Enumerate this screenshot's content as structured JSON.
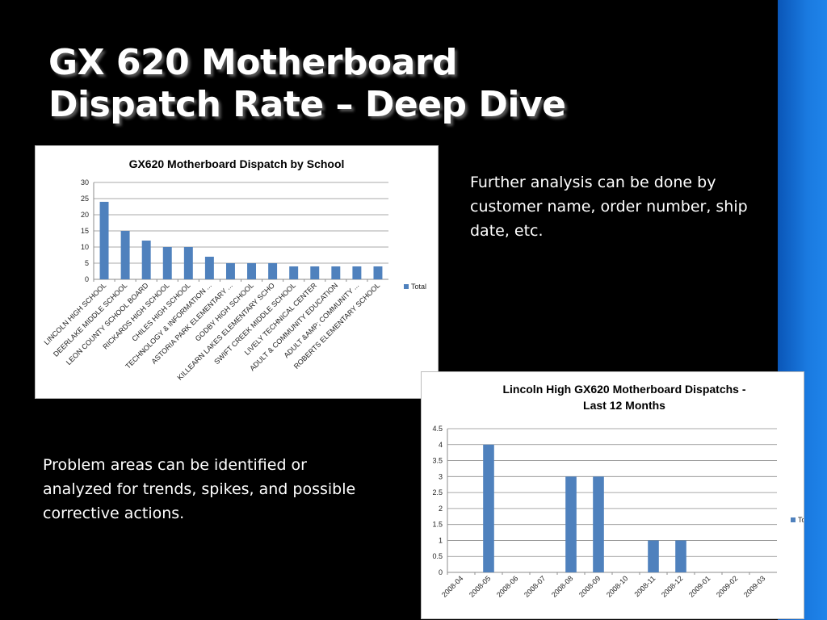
{
  "slide": {
    "title_line1": "GX 620 Motherboard",
    "title_line2": "Dispatch Rate – Deep Dive",
    "text_right": "Further analysis can be done by customer name, order number, ship date, etc.",
    "text_left": "Problem areas can be identified or analyzed for trends, spikes, and possible corrective actions."
  },
  "colors": {
    "background": "#000000",
    "accent_band": "#1a7ae0",
    "bar": "#4f81bd"
  },
  "chart_data": [
    {
      "type": "bar",
      "title": "GX620 Motherboard Dispatch by School",
      "categories": [
        "LINCOLN HIGH SCHOOL",
        "DEERLAKE MIDDLE SCHOOL",
        "LEON COUNTY SCHOOL BOARD",
        "RICKARDS HIGH SCHOOL",
        "CHILES HIGH SCHOOL",
        "TECHNOLOGY & INFORMATION ...",
        "ASTORIA PARK ELEMENTARY ...",
        "GODBY HIGH SCHOOL",
        "KILLEARN LAKES ELEMENTARY SCHO",
        "SWIFT CREEK MIDDLE SCHOOL",
        "LIVELY TECHNICAL CENTER",
        "ADULT & COMMUNITY EDUCATION",
        "ADULT &AMP; COMMUNITY ...",
        "ROBERTS ELEMENTARY SCHOOL"
      ],
      "series": [
        {
          "name": "Total",
          "values": [
            24,
            15,
            12,
            10,
            10,
            7,
            5,
            5,
            5,
            4,
            4,
            4,
            4,
            4
          ]
        }
      ],
      "yticks": [
        "0",
        "5",
        "10",
        "15",
        "20",
        "25",
        "30"
      ],
      "ylim": [
        0,
        30
      ],
      "grid": true,
      "legend": "right"
    },
    {
      "type": "bar",
      "title": "Lincoln High GX620 Motherboard Dispatchs - Last 12 Months",
      "title_lines": [
        "Lincoln High GX620 Motherboard Dispatchs -",
        "Last 12 Months"
      ],
      "categories": [
        "2008-04",
        "2008-05",
        "2008-06",
        "2008-07",
        "2008-08",
        "2008-09",
        "2008-10",
        "2008-11",
        "2008-12",
        "2009-01",
        "2009-02",
        "2009-03"
      ],
      "series": [
        {
          "name": "Total",
          "values": [
            0,
            4,
            0,
            0,
            3,
            3,
            0,
            1,
            1,
            0,
            0,
            0
          ]
        }
      ],
      "yticks": [
        "0",
        "0.5",
        "1",
        "1.5",
        "2",
        "2.5",
        "3",
        "3.5",
        "4",
        "4.5"
      ],
      "ylim": [
        0,
        4.5
      ],
      "grid": true,
      "legend": "right"
    }
  ]
}
